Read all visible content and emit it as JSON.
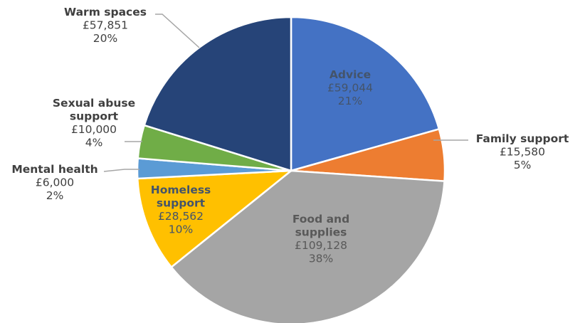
{
  "chart_data": {
    "type": "pie",
    "title": "",
    "start_angle_deg": 0,
    "direction": "clockwise",
    "legend": "none",
    "slices": [
      {
        "name": "Advice",
        "value": 59044,
        "value_label": "£59,044",
        "percent_label": "21%",
        "color": "#4472c4",
        "label_color": "#44546a",
        "label_position": "inside"
      },
      {
        "name": "Family support",
        "value": 15580,
        "value_label": "£15,580",
        "percent_label": "5%",
        "color": "#ed7d31",
        "label_color": "#404040",
        "label_position": "outside"
      },
      {
        "name": "Food and supplies",
        "value": 109128,
        "value_label": "£109,128",
        "percent_label": "38%",
        "color": "#a5a5a5",
        "label_color": "#595959",
        "label_position": "inside"
      },
      {
        "name": "Homeless support",
        "value": 28562,
        "value_label": "£28,562",
        "percent_label": "10%",
        "color": "#ffc000",
        "label_color": "#44546a",
        "label_position": "inside"
      },
      {
        "name": "Mental health",
        "value": 6000,
        "value_label": "£6,000",
        "percent_label": "2%",
        "color": "#5b9bd5",
        "label_color": "#404040",
        "label_position": "outside"
      },
      {
        "name": "Sexual abuse support",
        "value": 10000,
        "value_label": "£10,000",
        "percent_label": "4%",
        "color": "#70ad47",
        "label_color": "#404040",
        "label_position": "outside"
      },
      {
        "name": "Warm spaces",
        "value": 57851,
        "value_label": "£57,851",
        "percent_label": "20%",
        "color": "#264478",
        "label_color": "#404040",
        "label_position": "outside"
      }
    ]
  }
}
